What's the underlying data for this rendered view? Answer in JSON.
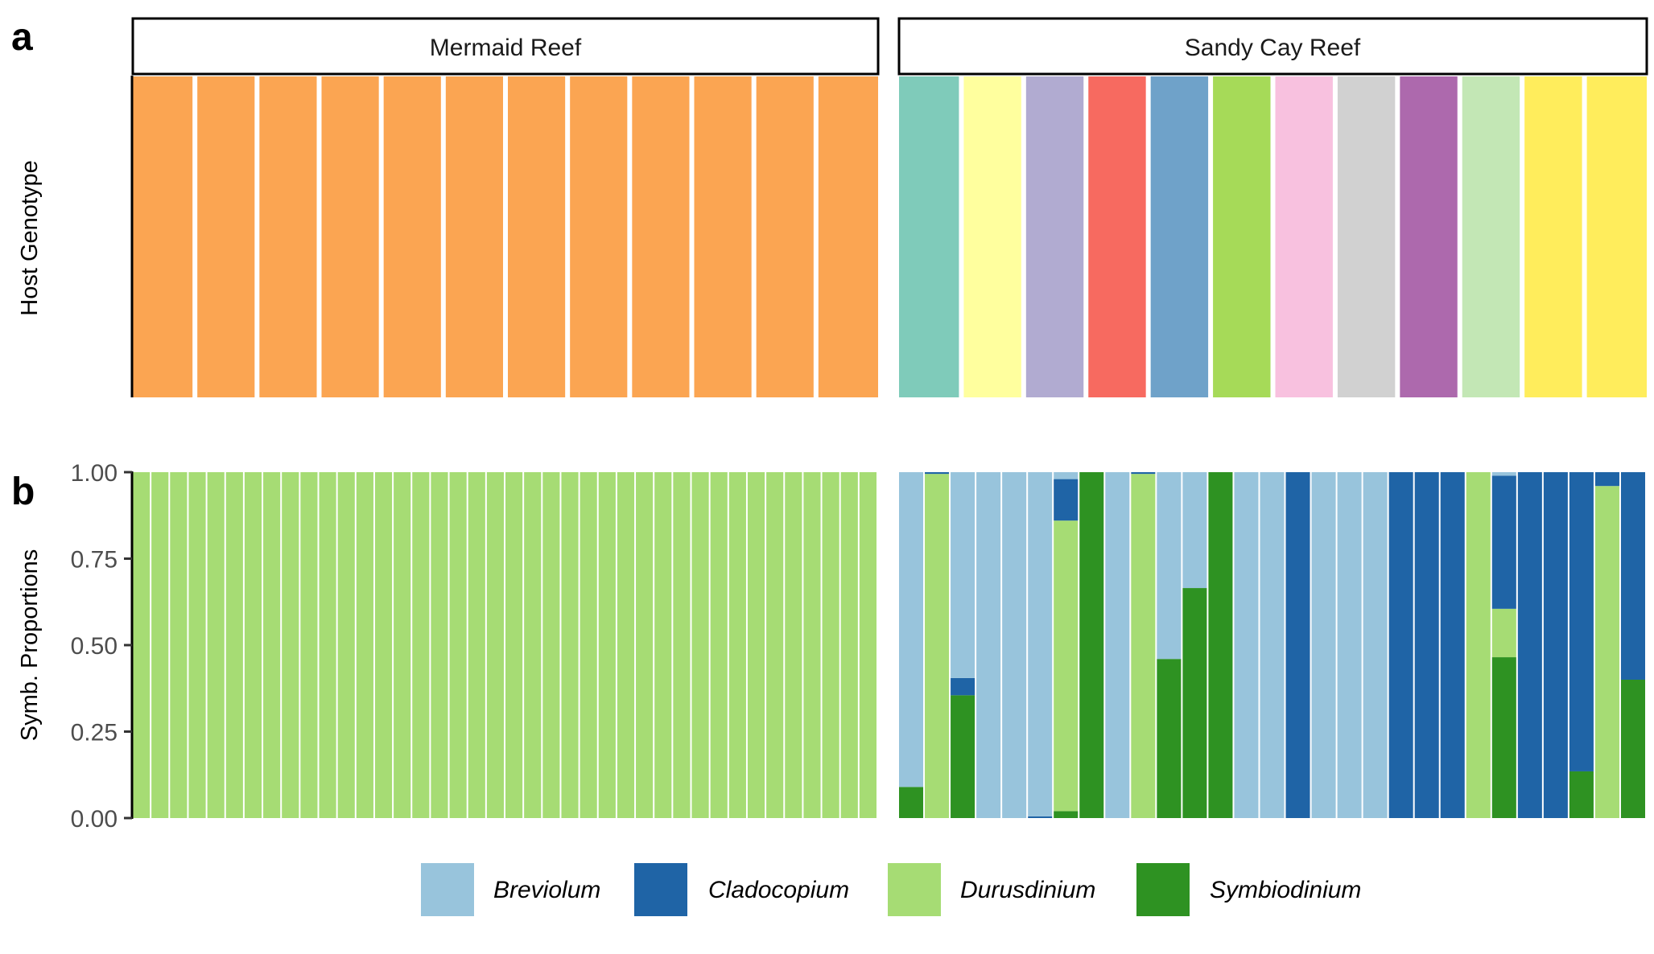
{
  "figure": {
    "panel_a_label": "a",
    "panel_b_label": "b",
    "reefs": [
      "Mermaid Reef",
      "Sandy Cay Reef"
    ]
  },
  "colors": {
    "Breviolum": "#98c4dc",
    "Cladocopium": "#1f64a6",
    "Durusdinium": "#a6dc74",
    "Symbiodinium": "#2e9222"
  },
  "legend": [
    "Breviolum",
    "Cladocopium",
    "Durusdinium",
    "Symbiodinium"
  ],
  "chart_data": [
    {
      "type": "bar",
      "panel": "a",
      "ylabel": "Host Genotype",
      "facets": [
        {
          "name": "Mermaid Reef",
          "genotype_colors": [
            "#fba552",
            "#fba552",
            "#fba552",
            "#fba552",
            "#fba552",
            "#fba552",
            "#fba552",
            "#fba552",
            "#fba552",
            "#fba552",
            "#fba552",
            "#fba552"
          ]
        },
        {
          "name": "Sandy Cay Reef",
          "genotype_colors": [
            "#7fcbba",
            "#ffff9e",
            "#b1abd1",
            "#f76a60",
            "#6fa2c9",
            "#a6da58",
            "#f8c1df",
            "#d1d1d1",
            "#ad69ad",
            "#c3e7b5",
            "#ffed5c",
            "#ffed5c"
          ]
        }
      ]
    },
    {
      "type": "bar",
      "stacked": true,
      "panel": "b",
      "ylabel": "Symb. Proportions",
      "ylim": [
        0,
        1
      ],
      "yticks": [
        "0.00",
        "0.25",
        "0.50",
        "0.75",
        "1.00"
      ],
      "series_order_bottom_to_top": [
        "Symbiodinium",
        "Durusdinium",
        "Cladocopium",
        "Breviolum"
      ],
      "facets": [
        {
          "name": "Mermaid Reef",
          "samples": 40,
          "uniform_composition": {
            "Symbiodinium": 0,
            "Durusdinium": 1.0,
            "Cladocopium": 0,
            "Breviolum": 0
          }
        },
        {
          "name": "Sandy Cay Reef",
          "samples": [
            {
              "Symbiodinium": 0.09,
              "Durusdinium": 0,
              "Cladocopium": 0,
              "Breviolum": 0.91
            },
            {
              "Symbiodinium": 0,
              "Durusdinium": 0.995,
              "Cladocopium": 0.005,
              "Breviolum": 0
            },
            {
              "Symbiodinium": 0.355,
              "Durusdinium": 0,
              "Cladocopium": 0.05,
              "Breviolum": 0.595
            },
            {
              "Symbiodinium": 0,
              "Durusdinium": 0,
              "Cladocopium": 0,
              "Breviolum": 1.0
            },
            {
              "Symbiodinium": 0,
              "Durusdinium": 0,
              "Cladocopium": 0,
              "Breviolum": 1.0
            },
            {
              "Symbiodinium": 0,
              "Durusdinium": 0,
              "Cladocopium": 0.005,
              "Breviolum": 0.995
            },
            {
              "Symbiodinium": 0.02,
              "Durusdinium": 0.84,
              "Cladocopium": 0.12,
              "Breviolum": 0.02
            },
            {
              "Symbiodinium": 1.0,
              "Durusdinium": 0,
              "Cladocopium": 0,
              "Breviolum": 0
            },
            {
              "Symbiodinium": 0,
              "Durusdinium": 0,
              "Cladocopium": 0,
              "Breviolum": 1.0
            },
            {
              "Symbiodinium": 0,
              "Durusdinium": 0.995,
              "Cladocopium": 0.005,
              "Breviolum": 0
            },
            {
              "Symbiodinium": 0.46,
              "Durusdinium": 0,
              "Cladocopium": 0,
              "Breviolum": 0.54
            },
            {
              "Symbiodinium": 0.665,
              "Durusdinium": 0,
              "Cladocopium": 0,
              "Breviolum": 0.335
            },
            {
              "Symbiodinium": 1.0,
              "Durusdinium": 0,
              "Cladocopium": 0,
              "Breviolum": 0
            },
            {
              "Symbiodinium": 0,
              "Durusdinium": 0,
              "Cladocopium": 0,
              "Breviolum": 1.0
            },
            {
              "Symbiodinium": 0,
              "Durusdinium": 0,
              "Cladocopium": 0,
              "Breviolum": 1.0
            },
            {
              "Symbiodinium": 0,
              "Durusdinium": 0,
              "Cladocopium": 1.0,
              "Breviolum": 0
            },
            {
              "Symbiodinium": 0,
              "Durusdinium": 0,
              "Cladocopium": 0,
              "Breviolum": 1.0
            },
            {
              "Symbiodinium": 0,
              "Durusdinium": 0,
              "Cladocopium": 0,
              "Breviolum": 1.0
            },
            {
              "Symbiodinium": 0,
              "Durusdinium": 0,
              "Cladocopium": 0,
              "Breviolum": 1.0
            },
            {
              "Symbiodinium": 0,
              "Durusdinium": 0,
              "Cladocopium": 1.0,
              "Breviolum": 0
            },
            {
              "Symbiodinium": 0,
              "Durusdinium": 0,
              "Cladocopium": 1.0,
              "Breviolum": 0
            },
            {
              "Symbiodinium": 0,
              "Durusdinium": 0,
              "Cladocopium": 1.0,
              "Breviolum": 0
            },
            {
              "Symbiodinium": 0,
              "Durusdinium": 1.0,
              "Cladocopium": 0,
              "Breviolum": 0
            },
            {
              "Symbiodinium": 0.465,
              "Durusdinium": 0.14,
              "Cladocopium": 0.385,
              "Breviolum": 0.01
            },
            {
              "Symbiodinium": 0,
              "Durusdinium": 0,
              "Cladocopium": 1.0,
              "Breviolum": 0
            },
            {
              "Symbiodinium": 0,
              "Durusdinium": 0,
              "Cladocopium": 1.0,
              "Breviolum": 0
            },
            {
              "Symbiodinium": 0.135,
              "Durusdinium": 0,
              "Cladocopium": 0.865,
              "Breviolum": 0
            },
            {
              "Symbiodinium": 0,
              "Durusdinium": 0.96,
              "Cladocopium": 0.04,
              "Breviolum": 0
            },
            {
              "Symbiodinium": 0.4,
              "Durusdinium": 0,
              "Cladocopium": 0.6,
              "Breviolum": 0
            }
          ]
        }
      ]
    }
  ]
}
